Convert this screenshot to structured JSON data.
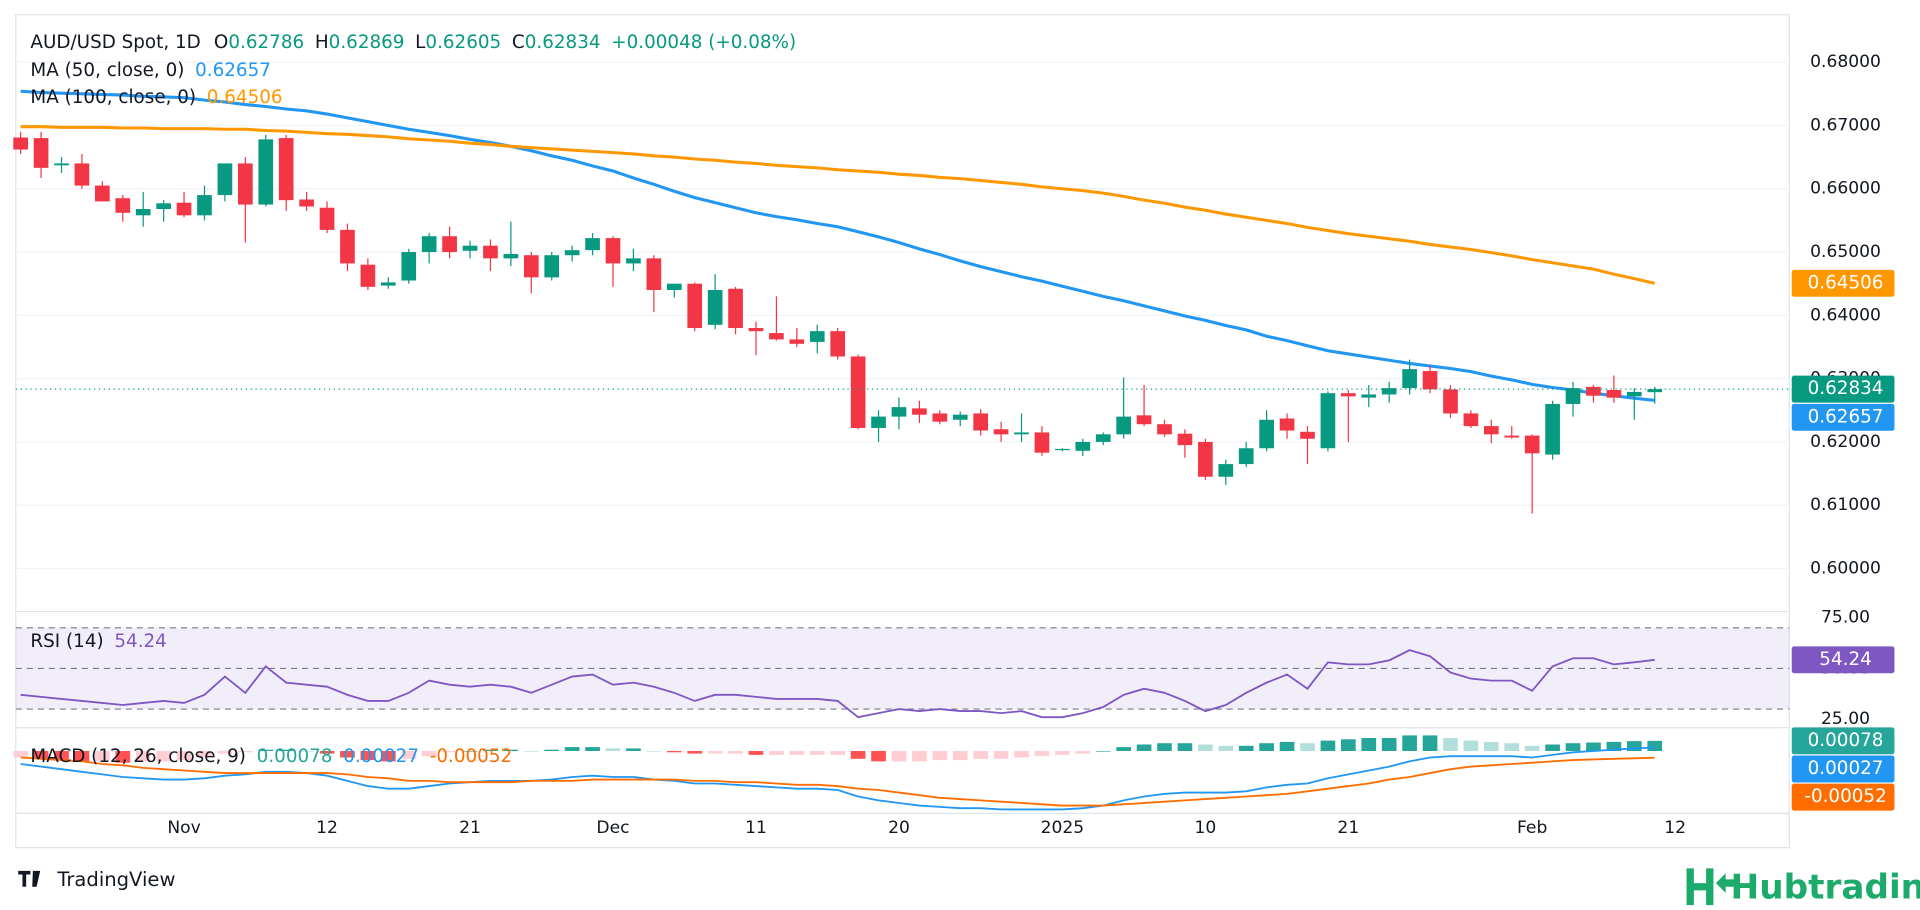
{
  "chart_data": [
    {
      "type": "candlestick",
      "title": "AUD/USD Spot, 1D",
      "ohlc_labels": [
        "O",
        "H",
        "L",
        "C"
      ],
      "change": "+0.00048 (+0.08%)",
      "up_color": "#089981",
      "down_color": "#f23645",
      "categories": [
        null,
        null,
        null,
        null,
        null,
        null,
        null,
        null,
        "Nov",
        null,
        null,
        null,
        null,
        null,
        null,
        "12",
        null,
        null,
        null,
        null,
        null,
        null,
        "21",
        null,
        null,
        null,
        null,
        null,
        null,
        "Dec",
        null,
        null,
        null,
        null,
        null,
        null,
        "11",
        null,
        null,
        null,
        null,
        null,
        null,
        "20",
        null,
        null,
        null,
        null,
        null,
        null,
        null,
        "2025",
        null,
        null,
        null,
        null,
        null,
        null,
        "10",
        null,
        null,
        null,
        null,
        null,
        null,
        "21",
        null,
        null,
        null,
        null,
        null,
        null,
        null,
        null,
        "Feb",
        null,
        null,
        null,
        null,
        null,
        null,
        "12"
      ],
      "open": [
        0.6681,
        0.668,
        0.6637,
        0.664,
        0.6605,
        0.6585,
        0.6558,
        0.6568,
        0.6578,
        0.6558,
        0.659,
        0.664,
        0.6575,
        0.668,
        0.6583,
        0.657,
        0.6535,
        0.648,
        0.6447,
        0.6455,
        0.65,
        0.6525,
        0.6502,
        0.651,
        0.649,
        0.6495,
        0.646,
        0.6495,
        0.6503,
        0.6522,
        0.6482,
        0.649,
        0.644,
        0.645,
        0.6385,
        0.6442,
        0.638,
        0.6372,
        0.6362,
        0.6358,
        0.6375,
        0.6335,
        0.6222,
        0.624,
        0.6253,
        0.6245,
        0.6235,
        0.6245,
        0.622,
        0.6212,
        0.6215,
        0.6187,
        0.6186,
        0.62,
        0.6212,
        0.6242,
        0.6228,
        0.6213,
        0.62,
        0.6145,
        0.6165,
        0.619,
        0.6237,
        0.6216,
        0.619,
        0.6277,
        0.627,
        0.6275,
        0.6285,
        0.6312,
        0.6283,
        0.6245,
        0.6225,
        0.621,
        0.621,
        0.618,
        0.626,
        0.6287,
        0.6282,
        0.6272,
        0.62786,
        null
      ],
      "high": [
        0.669,
        0.669,
        0.665,
        0.6655,
        0.6612,
        0.659,
        0.6595,
        0.6582,
        0.6595,
        0.6605,
        0.664,
        0.665,
        0.6685,
        0.6685,
        0.6595,
        0.658,
        0.6545,
        0.649,
        0.646,
        0.6505,
        0.653,
        0.654,
        0.6518,
        0.652,
        0.6548,
        0.65,
        0.65,
        0.651,
        0.653,
        0.6525,
        0.6505,
        0.6495,
        0.645,
        0.6452,
        0.6465,
        0.6445,
        0.639,
        0.643,
        0.638,
        0.6385,
        0.638,
        0.6338,
        0.625,
        0.627,
        0.6265,
        0.625,
        0.6248,
        0.6252,
        0.6232,
        0.6245,
        0.6225,
        0.619,
        0.6205,
        0.6215,
        0.6302,
        0.629,
        0.6235,
        0.622,
        0.6205,
        0.6172,
        0.62,
        0.625,
        0.6245,
        0.6225,
        0.628,
        0.6282,
        0.629,
        0.6295,
        0.633,
        0.632,
        0.629,
        0.625,
        0.6235,
        0.6225,
        0.6212,
        0.6265,
        0.6295,
        0.629,
        0.6305,
        0.6285,
        0.62869,
        null
      ],
      "low": [
        0.6655,
        0.6617,
        0.6625,
        0.66,
        0.658,
        0.6548,
        0.654,
        0.6548,
        0.6555,
        0.655,
        0.658,
        0.6515,
        0.6572,
        0.6565,
        0.6565,
        0.653,
        0.647,
        0.644,
        0.6442,
        0.645,
        0.6482,
        0.649,
        0.649,
        0.647,
        0.6478,
        0.6435,
        0.6455,
        0.6485,
        0.6495,
        0.6445,
        0.647,
        0.6405,
        0.6428,
        0.6375,
        0.6378,
        0.637,
        0.6337,
        0.636,
        0.635,
        0.634,
        0.633,
        0.622,
        0.62,
        0.622,
        0.623,
        0.6228,
        0.6225,
        0.621,
        0.62,
        0.62,
        0.6178,
        0.6185,
        0.6178,
        0.6195,
        0.6205,
        0.6225,
        0.6208,
        0.6175,
        0.614,
        0.6132,
        0.616,
        0.6185,
        0.6205,
        0.6165,
        0.6185,
        0.62,
        0.6255,
        0.6262,
        0.6275,
        0.6277,
        0.6238,
        0.6222,
        0.6198,
        0.6205,
        0.6087,
        0.6172,
        0.624,
        0.6262,
        0.6262,
        0.6235,
        0.62605,
        null
      ],
      "close": [
        0.6662,
        0.6633,
        0.664,
        0.6605,
        0.658,
        0.6562,
        0.6568,
        0.6577,
        0.6558,
        0.659,
        0.664,
        0.6575,
        0.6678,
        0.6582,
        0.6572,
        0.6535,
        0.6482,
        0.6445,
        0.6452,
        0.65,
        0.6525,
        0.65,
        0.651,
        0.649,
        0.6497,
        0.646,
        0.6495,
        0.6503,
        0.6522,
        0.6482,
        0.649,
        0.644,
        0.645,
        0.638,
        0.644,
        0.638,
        0.6375,
        0.6362,
        0.6355,
        0.6375,
        0.6335,
        0.6222,
        0.624,
        0.6255,
        0.6243,
        0.6232,
        0.6243,
        0.6218,
        0.6212,
        0.6215,
        0.6183,
        0.6189,
        0.62,
        0.6212,
        0.624,
        0.6228,
        0.6212,
        0.6195,
        0.6145,
        0.6165,
        0.619,
        0.6235,
        0.6218,
        0.6205,
        0.6277,
        0.6272,
        0.6275,
        0.6285,
        0.6315,
        0.6283,
        0.6245,
        0.6225,
        0.6212,
        0.6207,
        0.6182,
        0.626,
        0.6285,
        0.6273,
        0.627,
        0.6279,
        0.62834,
        null
      ],
      "series": [
        {
          "name": "MA (50, close, 0)",
          "color": "#2196f3",
          "values": [
            0.6754,
            0.6752,
            0.6751,
            0.675,
            0.6749,
            0.6748,
            0.6746,
            0.6745,
            0.6744,
            0.674,
            0.6737,
            0.6733,
            0.673,
            0.6726,
            0.6723,
            0.6718,
            0.6712,
            0.6706,
            0.67,
            0.6694,
            0.6689,
            0.6684,
            0.6678,
            0.6673,
            0.6667,
            0.666,
            0.6652,
            0.6645,
            0.6636,
            0.6628,
            0.6617,
            0.6607,
            0.6596,
            0.6586,
            0.6578,
            0.657,
            0.6562,
            0.6556,
            0.6551,
            0.6545,
            0.654,
            0.6532,
            0.6524,
            0.6515,
            0.6505,
            0.6496,
            0.6486,
            0.6477,
            0.6469,
            0.6461,
            0.6454,
            0.6446,
            0.6438,
            0.643,
            0.6423,
            0.6415,
            0.6407,
            0.6399,
            0.6392,
            0.6384,
            0.6377,
            0.6367,
            0.636,
            0.6352,
            0.6344,
            0.6339,
            0.6334,
            0.6329,
            0.6324,
            0.632,
            0.6316,
            0.6311,
            0.6304,
            0.6298,
            0.6291,
            0.6286,
            0.6282,
            0.6277,
            0.6273,
            0.6269,
            0.62657,
            null
          ]
        },
        {
          "name": "MA (100, close, 0)",
          "color": "#ff9800",
          "values": [
            0.6698,
            0.6698,
            0.6697,
            0.6697,
            0.6697,
            0.6696,
            0.6696,
            0.6695,
            0.6695,
            0.6695,
            0.6694,
            0.6694,
            0.6692,
            0.6691,
            0.6689,
            0.6687,
            0.6686,
            0.6684,
            0.6682,
            0.6679,
            0.6677,
            0.6675,
            0.6672,
            0.667,
            0.6667,
            0.6665,
            0.6663,
            0.6661,
            0.6659,
            0.6657,
            0.6655,
            0.6652,
            0.665,
            0.6647,
            0.6645,
            0.6642,
            0.664,
            0.6637,
            0.6635,
            0.6633,
            0.663,
            0.6628,
            0.6626,
            0.6623,
            0.6621,
            0.6618,
            0.6616,
            0.6613,
            0.661,
            0.6607,
            0.6603,
            0.66,
            0.6597,
            0.6593,
            0.6588,
            0.6582,
            0.6577,
            0.6571,
            0.6566,
            0.656,
            0.6555,
            0.655,
            0.6545,
            0.6539,
            0.6534,
            0.6529,
            0.6525,
            0.6521,
            0.6517,
            0.6512,
            0.6508,
            0.6504,
            0.6499,
            0.6494,
            0.6488,
            0.6483,
            0.6478,
            0.6473,
            0.6465,
            0.6458,
            0.64506,
            null
          ]
        }
      ],
      "ylim": [
        0.5932,
        0.6875
      ],
      "yticks": [
        {
          "value": 0.6,
          "label": "0.60000"
        },
        {
          "value": 0.61,
          "label": "0.61000"
        },
        {
          "value": 0.62,
          "label": "0.62000"
        },
        {
          "value": 0.63,
          "label": "0.63000"
        },
        {
          "value": 0.64,
          "label": "0.64000"
        },
        {
          "value": 0.65,
          "label": "0.65000"
        },
        {
          "value": 0.66,
          "label": "0.66000"
        },
        {
          "value": 0.67,
          "label": "0.67000"
        },
        {
          "value": 0.68,
          "label": "0.68000"
        }
      ],
      "grid": true
    },
    {
      "type": "line",
      "series": [
        {
          "name": "RSI (14)",
          "color": "#7e57c2",
          "values": [
            37,
            36,
            35,
            34,
            33,
            32,
            33,
            34,
            33,
            37,
            46,
            38,
            51,
            43,
            42,
            41,
            37,
            34,
            34,
            38,
            44,
            42,
            41,
            42,
            41,
            38,
            42,
            46,
            47,
            42,
            43,
            41,
            38,
            34,
            37,
            37,
            36,
            35,
            35,
            35,
            34,
            26,
            28,
            30,
            29,
            30,
            29,
            29,
            28,
            29,
            26,
            26,
            28,
            31,
            37,
            40,
            38,
            34,
            29,
            32,
            38,
            43,
            47,
            40,
            53,
            52,
            52,
            54,
            59,
            56,
            48,
            45,
            44,
            44,
            39,
            51,
            55,
            55,
            52,
            53,
            54.24,
            null
          ]
        }
      ],
      "levels": [
        70,
        50,
        30
      ],
      "ylim": [
        22.6,
        78
      ],
      "yticks": [
        {
          "value": 75,
          "label": "75.00"
        },
        {
          "value": 50,
          "label": "50.00"
        },
        {
          "value": 25,
          "label": "25.00"
        }
      ]
    },
    {
      "type": "macd",
      "title": "MACD (12, 26, close, 9)",
      "hist_colors": [
        "#26a69a",
        "#b2dfdb",
        "#ffcdd2",
        "#ff5252"
      ],
      "series": [
        {
          "type": "bar",
          "color": "#26a69a",
          "values": [
            -0.0005,
            -0.0006,
            -0.0007,
            -0.0008,
            -0.0008,
            -0.0009,
            -0.0008,
            -0.0008,
            -0.0007,
            -0.0005,
            -0.0002,
            -0.0001,
            0.0001,
            0.0001,
            0,
            -0.0002,
            -0.0005,
            -0.0007,
            -0.0008,
            -0.0006,
            -0.0004,
            -0.0001,
            0,
            0.0001,
            0.0001,
            0,
            0.0001,
            0.0003,
            0.0003,
            0.0002,
            0.0002,
            0,
            -0.0001,
            -0.0002,
            -0.0002,
            -0.0002,
            -0.0003,
            -0.0003,
            -0.0003,
            -0.0003,
            -0.0003,
            -0.0006,
            -0.0008,
            -0.0008,
            -0.0008,
            -0.0007,
            -0.0007,
            -0.0006,
            -0.0006,
            -0.0005,
            -0.0004,
            -0.0003,
            -0.0002,
            0,
            0.0003,
            0.0005,
            0.0006,
            0.0006,
            0.0005,
            0.0004,
            0.0004,
            0.0006,
            0.0007,
            0.0006,
            0.0008,
            0.0009,
            0.001,
            0.001,
            0.0012,
            0.0012,
            0.001,
            0.0008,
            0.0007,
            0.0006,
            0.0004,
            0.0005,
            0.0006,
            0.00065,
            0.0007,
            0.00076,
            0.00078,
            null
          ]
        },
        {
          "type": "line",
          "color": "#2196f3",
          "values": [
            -0.001,
            -0.0012,
            -0.0014,
            -0.0016,
            -0.0018,
            -0.002,
            -0.0021,
            -0.0022,
            -0.0022,
            -0.0021,
            -0.0019,
            -0.0018,
            -0.0016,
            -0.0016,
            -0.0017,
            -0.0019,
            -0.0023,
            -0.0027,
            -0.0029,
            -0.0029,
            -0.0027,
            -0.0025,
            -0.0024,
            -0.0023,
            -0.0023,
            -0.0023,
            -0.0022,
            -0.002,
            -0.0019,
            -0.002,
            -0.002,
            -0.0022,
            -0.0023,
            -0.0025,
            -0.0025,
            -0.0026,
            -0.0027,
            -0.0028,
            -0.0029,
            -0.0029,
            -0.003,
            -0.0035,
            -0.0038,
            -0.004,
            -0.0042,
            -0.0043,
            -0.0044,
            -0.0044,
            -0.0045,
            -0.0045,
            -0.0045,
            -0.0045,
            -0.0044,
            -0.0042,
            -0.0038,
            -0.0035,
            -0.0033,
            -0.0032,
            -0.0032,
            -0.0032,
            -0.0031,
            -0.0028,
            -0.0026,
            -0.0025,
            -0.0021,
            -0.0018,
            -0.0015,
            -0.0012,
            -0.0008,
            -0.0005,
            -0.0004,
            -0.0004,
            -0.0004,
            -0.0004,
            -0.0005,
            -0.0003,
            -0.0001,
            0,
            0.0001,
            0.0002,
            0.00027,
            null
          ]
        },
        {
          "type": "line",
          "color": "#ff6d00",
          "values": [
            -0.0005,
            -0.0006,
            -0.0007,
            -0.0008,
            -0.001,
            -0.0011,
            -0.0013,
            -0.0014,
            -0.0015,
            -0.0016,
            -0.0017,
            -0.0017,
            -0.0017,
            -0.0017,
            -0.0017,
            -0.0017,
            -0.0018,
            -0.002,
            -0.0021,
            -0.0023,
            -0.0023,
            -0.0024,
            -0.0024,
            -0.0024,
            -0.0024,
            -0.0023,
            -0.0023,
            -0.0023,
            -0.0022,
            -0.0022,
            -0.0022,
            -0.0022,
            -0.0022,
            -0.0023,
            -0.0023,
            -0.0024,
            -0.0024,
            -0.0025,
            -0.0026,
            -0.0026,
            -0.0027,
            -0.0029,
            -0.003,
            -0.0032,
            -0.0034,
            -0.0036,
            -0.0037,
            -0.0038,
            -0.0039,
            -0.004,
            -0.0041,
            -0.0042,
            -0.0042,
            -0.0042,
            -0.0041,
            -0.004,
            -0.0039,
            -0.0038,
            -0.0037,
            -0.0036,
            -0.0035,
            -0.0034,
            -0.0033,
            -0.0031,
            -0.0029,
            -0.0027,
            -0.0025,
            -0.0022,
            -0.002,
            -0.0017,
            -0.0014,
            -0.0012,
            -0.0011,
            -0.001,
            -0.0009,
            -0.0008,
            -0.0007,
            -0.00065,
            -0.0006,
            -0.00056,
            -0.00052,
            null
          ]
        }
      ],
      "ylim": [
        -0.0048,
        0.0016
      ]
    }
  ],
  "footer": {
    "left": "TradingView",
    "right": "Hubtrading"
  }
}
